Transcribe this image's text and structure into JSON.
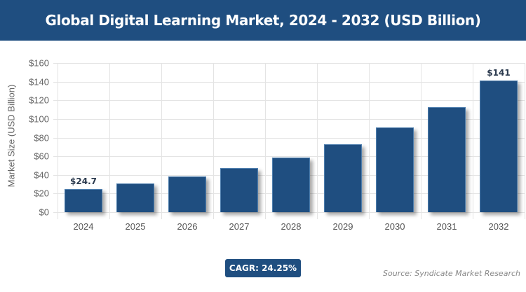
{
  "header": {
    "title": "Global Digital Learning Market, 2024 - 2032 (USD Billion)"
  },
  "chart_data": {
    "type": "bar",
    "title": "Global Digital Learning Market, 2024 - 2032 (USD Billion)",
    "categories": [
      "2024",
      "2025",
      "2026",
      "2027",
      "2028",
      "2029",
      "2030",
      "2031",
      "2032"
    ],
    "values": [
      24.7,
      30.7,
      38.1,
      47.3,
      58.8,
      73.1,
      90.8,
      112.8,
      141
    ],
    "data_labels": {
      "2024": "$24.7",
      "2032": "$141"
    },
    "xlabel": "",
    "ylabel": "Market Size (USD Billion)",
    "ylim": [
      0,
      160
    ],
    "yticks": [
      "$0",
      "$20",
      "$40",
      "$60",
      "$80",
      "$100",
      "$120",
      "$140",
      "$160"
    ],
    "grid": true,
    "bar_color": "#1f4e80",
    "legend": null
  },
  "footer": {
    "cagr_label": "CAGR: 24.25%",
    "source": "Source: Syndicate Market Research"
  },
  "colors": {
    "brand": "#1f4e80",
    "background": "#ffffff"
  }
}
